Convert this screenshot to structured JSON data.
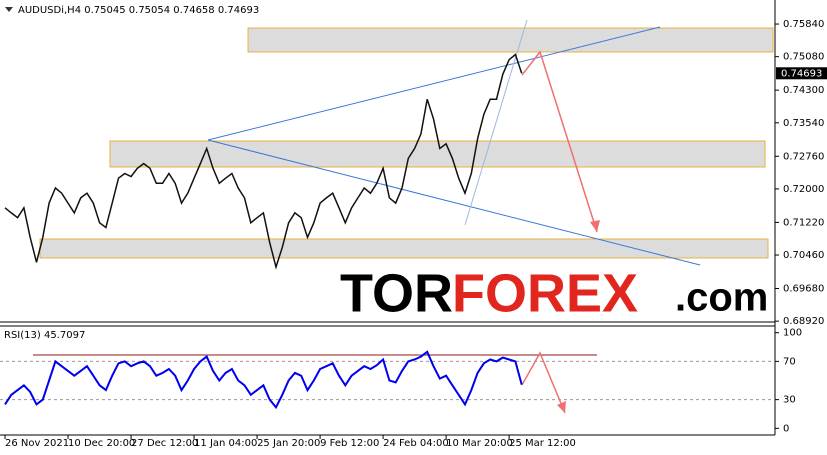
{
  "chart_data": [
    {
      "type": "line",
      "title": "AUDUSDi,H4  0.75045 0.75054 0.74658 0.74693",
      "color": "#111111",
      "values": [
        0.7156,
        0.7144,
        0.7133,
        0.7156,
        0.7087,
        0.7029,
        0.7087,
        0.7167,
        0.7202,
        0.719,
        0.7167,
        0.7144,
        0.7179,
        0.719,
        0.7167,
        0.7121,
        0.711,
        0.7167,
        0.7225,
        0.7236,
        0.7229,
        0.7248,
        0.7259,
        0.7248,
        0.7213,
        0.7213,
        0.7236,
        0.7213,
        0.7167,
        0.719,
        0.7225,
        0.7259,
        0.7294,
        0.7248,
        0.7213,
        0.7225,
        0.7236,
        0.7202,
        0.7179,
        0.7121,
        0.7133,
        0.7144,
        0.7075,
        0.7018,
        0.7064,
        0.7121,
        0.7144,
        0.7133,
        0.7087,
        0.7121,
        0.7167,
        0.7179,
        0.719,
        0.7156,
        0.7121,
        0.7156,
        0.7179,
        0.7202,
        0.719,
        0.7213,
        0.7248,
        0.7179,
        0.7167,
        0.7202,
        0.7271,
        0.7294,
        0.7328,
        0.7409,
        0.7363,
        0.7294,
        0.7305,
        0.7271,
        0.7225,
        0.719,
        0.7236,
        0.7317,
        0.7374,
        0.7409,
        0.7409,
        0.7467,
        0.7501,
        0.7513,
        0.74693
      ],
      "last": 0.74693,
      "xlim": [
        -0.8,
        122.2
      ],
      "xticks": [
        {
          "value": 0,
          "label": "26 Nov 2021"
        },
        {
          "value": 10,
          "label": "10 Dec 20:00"
        },
        {
          "value": 20,
          "label": "27 Dec 12:00"
        },
        {
          "value": 30,
          "label": "11 Jan 04:00"
        },
        {
          "value": 40,
          "label": "25 Jan 20:00"
        },
        {
          "value": 50,
          "label": "9 Feb 12:00"
        },
        {
          "value": 60,
          "label": "24 Feb 04:00"
        },
        {
          "value": 70,
          "label": "10 Mar 20:00"
        },
        {
          "value": 80,
          "label": "25 Mar 12:00"
        }
      ],
      "ylim": [
        0.689,
        0.764
      ],
      "yticks": [
        {
          "value": 0.7584,
          "label": "0.75840"
        },
        {
          "value": 0.7508,
          "label": "0.75080"
        },
        {
          "value": 0.743,
          "label": "0.74300"
        },
        {
          "value": 0.7354,
          "label": "0.73540"
        },
        {
          "value": 0.7276,
          "label": "0.72760"
        },
        {
          "value": 0.72,
          "label": "0.72000"
        },
        {
          "value": 0.7122,
          "label": "0.71220"
        },
        {
          "value": 0.7046,
          "label": "0.70460"
        },
        {
          "value": 0.6968,
          "label": "0.69680"
        },
        {
          "value": 0.6892,
          "label": "0.68920"
        }
      ],
      "watermark": [
        "TOR",
        "FOREX",
        ".com"
      ]
    },
    {
      "type": "line",
      "title": "RSI(13) 45.7097",
      "color": "#0000ee",
      "values": [
        25,
        35,
        40,
        45,
        38,
        25,
        30,
        50,
        70,
        65,
        60,
        55,
        60,
        65,
        55,
        45,
        40,
        55,
        68,
        70,
        65,
        68,
        70,
        65,
        55,
        58,
        62,
        55,
        40,
        50,
        62,
        70,
        75,
        60,
        50,
        58,
        62,
        50,
        45,
        35,
        40,
        45,
        30,
        22,
        35,
        50,
        58,
        55,
        40,
        50,
        62,
        65,
        68,
        55,
        45,
        55,
        60,
        65,
        62,
        66,
        72,
        50,
        48,
        60,
        70,
        72,
        75,
        80,
        65,
        52,
        55,
        45,
        35,
        25,
        40,
        58,
        68,
        72,
        70,
        74,
        72,
        70,
        45.7097
      ],
      "xlim": [
        -0.8,
        122.2
      ],
      "ylim": [
        -7,
        107
      ],
      "yticks": [
        100,
        70,
        30,
        0
      ]
    }
  ]
}
